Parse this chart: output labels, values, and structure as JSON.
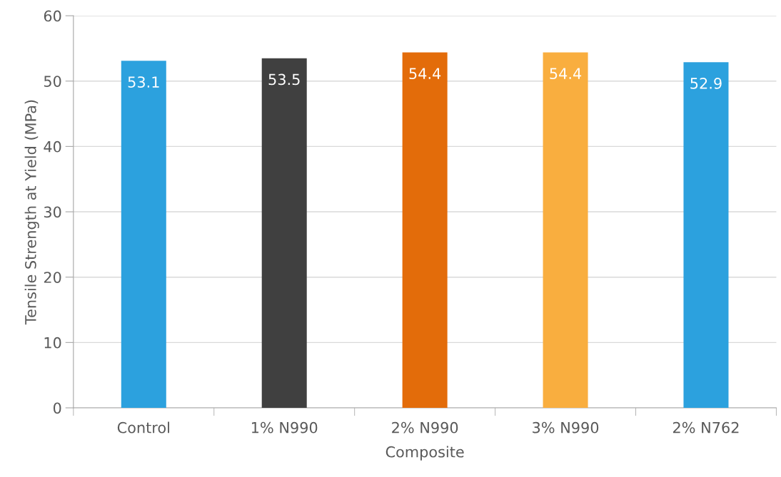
{
  "chart_data": {
    "type": "bar",
    "xlabel": "Composite",
    "ylabel": "Tensile Strength at Yield (MPa)",
    "categories": [
      "Control",
      "1% N990",
      "2% N990",
      "3% N990",
      "2% N762"
    ],
    "values": [
      53.1,
      53.5,
      54.4,
      54.4,
      52.9
    ],
    "colors": [
      "#2ca1de",
      "#404040",
      "#e36c0a",
      "#f9ae3f",
      "#2ca1de"
    ],
    "ylim": [
      0,
      60
    ],
    "yticks": [
      0,
      10,
      20,
      30,
      40,
      50,
      60
    ],
    "grid": "y",
    "data_labels": true
  }
}
